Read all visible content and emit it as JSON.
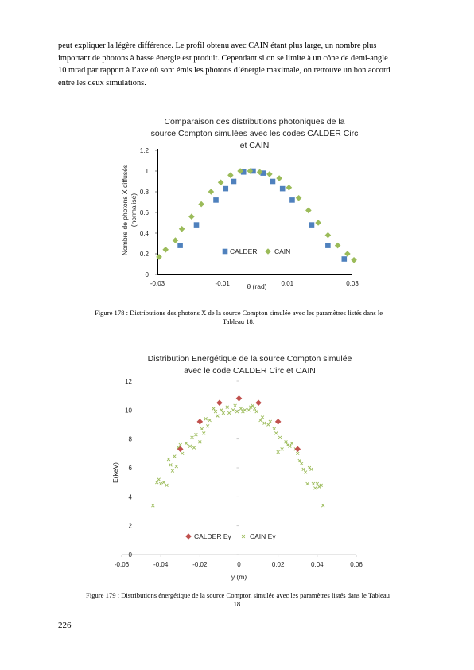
{
  "paragraph": {
    "lines": [
      "peut expliquer la légère différence. Le profil obtenu avec CAIN étant plus large, un nombre plus",
      "important de photons à basse énergie est produit. Cependant si on se limite à un cône de demi-angle",
      "10 mrad par rapport à l’axe où sont émis les photons d’énergie maximale, on retrouve un bon accord",
      "entre les deux simulations."
    ]
  },
  "figure1": {
    "caption_lines": [
      "Figure 178 : Distributions des photons X de la source Compton simulée avec les paramètres listés dans le",
      "Tableau 18."
    ]
  },
  "figure2": {
    "caption_lines": [
      "Figure 179 : Distributions énergétique de la source Compton simulée avec les paramètres listés dans le Tableau",
      "18."
    ]
  },
  "page_number": "226",
  "chart_data": [
    {
      "type": "scatter",
      "title_lines": [
        "Comparaison des distributions photoniques de la",
        "source Compton simulées avec les codes CALDER Circ",
        "et CAIN"
      ],
      "xlabel": "θ (rad)",
      "ylabel_lines": [
        "Nombre de photons X diffusés",
        "(normalisé)"
      ],
      "xlim": [
        -0.03,
        0.03
      ],
      "ylim": [
        0,
        1.2
      ],
      "x_ticks": [
        -0.03,
        -0.01,
        0.01,
        0.03
      ],
      "x_tick_labels": [
        "-0.03",
        "-0.01",
        "0.01",
        "0.03"
      ],
      "y_ticks": [
        0,
        0.2,
        0.4,
        0.6,
        0.8,
        1,
        1.2
      ],
      "y_tick_labels": [
        "0",
        "0.2",
        "0.4",
        "0.6",
        "0.8",
        "1",
        "1.2"
      ],
      "grid": false,
      "legend_position": "bottom-center",
      "series": [
        {
          "name": "CALDER",
          "marker": "square",
          "color": "#4f81bd",
          "points": [
            [
              -0.023,
              0.28
            ],
            [
              -0.018,
              0.48
            ],
            [
              -0.012,
              0.72
            ],
            [
              -0.009,
              0.83
            ],
            [
              -0.0065,
              0.9
            ],
            [
              -0.0035,
              0.99
            ],
            [
              -0.0005,
              1.0
            ],
            [
              0.0025,
              0.98
            ],
            [
              0.0055,
              0.9
            ],
            [
              0.0085,
              0.83
            ],
            [
              0.0115,
              0.72
            ],
            [
              0.0175,
              0.48
            ],
            [
              0.0225,
              0.28
            ],
            [
              0.0275,
              0.15
            ]
          ]
        },
        {
          "name": "CAIN",
          "marker": "diamond",
          "color": "#9bbb59",
          "points": [
            [
              -0.0295,
              0.17
            ],
            [
              -0.0275,
              0.24
            ],
            [
              -0.0245,
              0.33
            ],
            [
              -0.0225,
              0.44
            ],
            [
              -0.0195,
              0.56
            ],
            [
              -0.0165,
              0.68
            ],
            [
              -0.0135,
              0.8
            ],
            [
              -0.0105,
              0.89
            ],
            [
              -0.0075,
              0.96
            ],
            [
              -0.0045,
              1.0
            ],
            [
              -0.0015,
              1.0
            ],
            [
              0.0015,
              0.99
            ],
            [
              0.0045,
              0.97
            ],
            [
              0.0075,
              0.93
            ],
            [
              0.0105,
              0.84
            ],
            [
              0.0135,
              0.74
            ],
            [
              0.0165,
              0.62
            ],
            [
              0.0195,
              0.5
            ],
            [
              0.0225,
              0.38
            ],
            [
              0.0255,
              0.28
            ],
            [
              0.0285,
              0.2
            ],
            [
              0.0305,
              0.14
            ]
          ]
        }
      ]
    },
    {
      "type": "scatter",
      "title_lines": [
        "Distribution Energétique de la source Compton simulée",
        "avec le code CALDER Circ et CAIN"
      ],
      "xlabel": "y (m)",
      "ylabel": "E(keV)",
      "xlim": [
        -0.06,
        0.06
      ],
      "ylim": [
        0,
        12
      ],
      "x_ticks": [
        -0.06,
        -0.04,
        -0.02,
        0,
        0.02,
        0.04,
        0.06
      ],
      "x_tick_labels": [
        "-0.06",
        "-0.04",
        "-0.02",
        "0",
        "0.02",
        "0.04",
        "0.06"
      ],
      "y_ticks": [
        0,
        2,
        4,
        6,
        8,
        10,
        12
      ],
      "y_tick_labels": [
        "0",
        "2",
        "4",
        "6",
        "8",
        "10",
        "12"
      ],
      "grid": false,
      "legend_position": "bottom-center",
      "series": [
        {
          "name": "CALDER Eγ",
          "marker": "diamond",
          "color": "#c0504d",
          "points": [
            [
              -0.03,
              7.3
            ],
            [
              -0.02,
              9.2
            ],
            [
              -0.01,
              10.5
            ],
            [
              0.0,
              10.8
            ],
            [
              0.01,
              10.5
            ],
            [
              0.02,
              9.2
            ],
            [
              0.03,
              7.3
            ]
          ]
        },
        {
          "name": "CAIN Eγ",
          "marker": "x",
          "color": "#9bbb59",
          "points": [
            [
              -0.044,
              3.4
            ],
            [
              -0.042,
              5.0
            ],
            [
              -0.041,
              5.2
            ],
            [
              -0.04,
              4.9
            ],
            [
              -0.0385,
              5.0
            ],
            [
              -0.037,
              4.8
            ],
            [
              -0.036,
              6.6
            ],
            [
              -0.035,
              6.2
            ],
            [
              -0.034,
              5.8
            ],
            [
              -0.033,
              6.8
            ],
            [
              -0.032,
              6.1
            ],
            [
              -0.031,
              7.4
            ],
            [
              -0.03,
              7.6
            ],
            [
              -0.029,
              7.0
            ],
            [
              -0.027,
              7.7
            ],
            [
              -0.025,
              7.5
            ],
            [
              -0.024,
              8.1
            ],
            [
              -0.023,
              7.4
            ],
            [
              -0.022,
              8.3
            ],
            [
              -0.02,
              7.8
            ],
            [
              -0.019,
              8.7
            ],
            [
              -0.018,
              8.4
            ],
            [
              -0.017,
              9.4
            ],
            [
              -0.016,
              8.9
            ],
            [
              -0.015,
              9.3
            ],
            [
              -0.013,
              10.1
            ],
            [
              -0.012,
              9.9
            ],
            [
              -0.011,
              9.6
            ],
            [
              -0.009,
              10.0
            ],
            [
              -0.008,
              9.8
            ],
            [
              -0.006,
              10.2
            ],
            [
              -0.005,
              9.8
            ],
            [
              -0.003,
              10.0
            ],
            [
              -0.002,
              10.3
            ],
            [
              -0.001,
              9.9
            ],
            [
              0.001,
              10.1
            ],
            [
              0.002,
              9.9
            ],
            [
              0.003,
              10.0
            ],
            [
              0.005,
              10.0
            ],
            [
              0.006,
              10.2
            ],
            [
              0.007,
              10.3
            ],
            [
              0.008,
              10.1
            ],
            [
              0.009,
              9.9
            ],
            [
              0.011,
              9.3
            ],
            [
              0.012,
              9.5
            ],
            [
              0.013,
              9.1
            ],
            [
              0.015,
              9.0
            ],
            [
              0.016,
              9.2
            ],
            [
              0.018,
              8.7
            ],
            [
              0.019,
              8.4
            ],
            [
              0.02,
              7.1
            ],
            [
              0.021,
              8.1
            ],
            [
              0.022,
              7.3
            ],
            [
              0.024,
              7.8
            ],
            [
              0.025,
              7.6
            ],
            [
              0.026,
              7.5
            ],
            [
              0.027,
              7.7
            ],
            [
              0.029,
              7.3
            ],
            [
              0.03,
              7.0
            ],
            [
              0.031,
              6.5
            ],
            [
              0.032,
              6.3
            ],
            [
              0.033,
              5.9
            ],
            [
              0.034,
              5.7
            ],
            [
              0.035,
              4.9
            ],
            [
              0.036,
              6.0
            ],
            [
              0.037,
              5.9
            ],
            [
              0.038,
              4.9
            ],
            [
              0.039,
              4.6
            ],
            [
              0.04,
              4.9
            ],
            [
              0.041,
              4.7
            ],
            [
              0.042,
              4.8
            ],
            [
              0.043,
              3.4
            ]
          ]
        }
      ]
    }
  ]
}
